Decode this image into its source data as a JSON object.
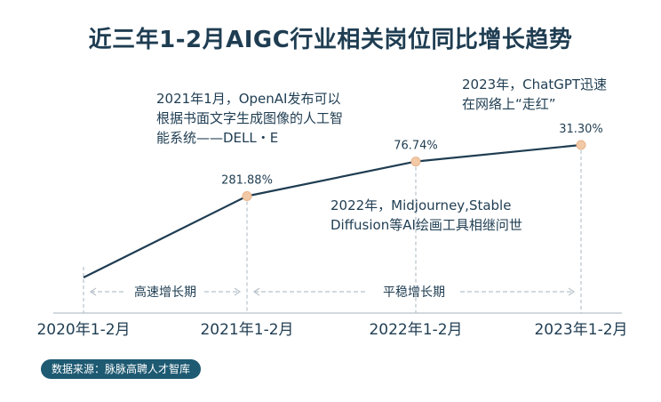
{
  "chart_data": {
    "type": "line",
    "title": "近三年1-2月AIGC行业相关岗位同比增长趋势",
    "categories": [
      "2020年1-2月",
      "2021年1-2月",
      "2022年1-2月",
      "2023年1-2月"
    ],
    "series": [
      {
        "values": [
          0,
          281.88,
          76.74,
          31.3
        ],
        "labels": [
          "",
          "281.88%",
          "76.74%",
          "31.30%"
        ]
      }
    ],
    "phases": [
      {
        "label": "高速增长期",
        "from": "2020年1-2月",
        "to": "2021年1-2月"
      },
      {
        "label": "平稳增长期",
        "from": "2021年1-2月",
        "to": "2023年1-2月"
      }
    ],
    "annotations": [
      {
        "text": "2021年1月，OpenAI发布可以\n根据书面文字生成图像的人工智\n能系统——DELL・E"
      },
      {
        "text": "2022年，Midjourney,Stable\nDiffusion等AI绘画工具相继问世"
      },
      {
        "text": "2023年，ChatGPT迅速\n在网络上“走红”"
      }
    ],
    "colors": {
      "line": "#1f3d52",
      "marker": "#f2c9a6",
      "guide": "#b8c2ca",
      "source_bg": "#1e5a72"
    },
    "grid": false,
    "legend": "none"
  },
  "source": "数据来源：脉脉高聘人才智库"
}
